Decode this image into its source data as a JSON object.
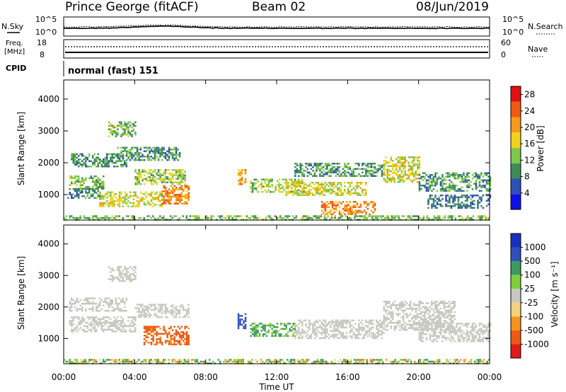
{
  "header": {
    "station": "Prince George (fitACF)",
    "beam": "Beam 02",
    "date": "08/Jun/2019"
  },
  "strip": {
    "nsky_label": "N.Sky",
    "nsky_top": "10^5",
    "nsky_bottom": "10^0",
    "nsearch_label": "N.Search",
    "nsearch_top": "10^5",
    "nsearch_bottom": "10^0",
    "freq_label_1": "Freq.",
    "freq_label_2": "[MHz]",
    "freq_top": "18",
    "freq_bottom": "8",
    "nave_label": "Nave",
    "nave_top": "60",
    "nave_bottom": "0",
    "cpid_label": "CPID",
    "cpid_text": "normal (fast) 151"
  },
  "colors": {
    "power_scale": [
      "#1010e6",
      "#2f4fbb",
      "#3e8c5a",
      "#7fc94a",
      "#f2d21c",
      "#f59a1a",
      "#ef5a12",
      "#e01010"
    ],
    "velocity_scale": [
      "#e21a1a",
      "#ef5a12",
      "#f5931a",
      "#f3d27a",
      "#c8c8c0",
      "#7fcf3a",
      "#3c9a60",
      "#2f4fbb",
      "#1a2fbf"
    ],
    "ground_scatter": "#c8c8c0"
  },
  "chart_data": [
    {
      "type": "heatmap",
      "panel": "power",
      "ylabel": "Slant Range [km]",
      "yticks": [
        "1000",
        "2000",
        "3000",
        "4000"
      ],
      "ylim": [
        200,
        4600
      ],
      "xticks": [
        "00:00",
        "04:00",
        "08:00",
        "12:00",
        "16:00",
        "20:00",
        "00:00"
      ],
      "xlim_hours": [
        0,
        24
      ],
      "colorbar_label": "Power [dB]",
      "colorbar_ticks": [
        "4",
        "8",
        "12",
        "16",
        "20",
        "24",
        "28"
      ],
      "colorbar_range": [
        0,
        30
      ],
      "echo_regions": [
        {
          "t0": 0.3,
          "t1": 2.2,
          "r0": 1200,
          "r1": 1600,
          "value": 12
        },
        {
          "t0": 0.2,
          "t1": 2.0,
          "r0": 900,
          "r1": 1200,
          "value": 8
        },
        {
          "t0": 0.4,
          "t1": 3.5,
          "r0": 1900,
          "r1": 2300,
          "value": 10
        },
        {
          "t0": 2.5,
          "t1": 4.0,
          "r0": 2800,
          "r1": 3300,
          "value": 12
        },
        {
          "t0": 2.0,
          "t1": 5.5,
          "r0": 600,
          "r1": 1100,
          "value": 16
        },
        {
          "t0": 5.5,
          "t1": 7.0,
          "r0": 700,
          "r1": 1300,
          "value": 22
        },
        {
          "t0": 4.0,
          "t1": 6.8,
          "r0": 1300,
          "r1": 1800,
          "value": 14
        },
        {
          "t0": 3.0,
          "t1": 6.5,
          "r0": 2100,
          "r1": 2500,
          "value": 10
        },
        {
          "t0": 9.8,
          "t1": 10.2,
          "r0": 1300,
          "r1": 1800,
          "value": 20
        },
        {
          "t0": 10.5,
          "t1": 13.5,
          "r0": 1100,
          "r1": 1500,
          "value": 14
        },
        {
          "t0": 12.5,
          "t1": 17.0,
          "r0": 1000,
          "r1": 1400,
          "value": 16
        },
        {
          "t0": 14.5,
          "t1": 17.5,
          "r0": 400,
          "r1": 800,
          "value": 22
        },
        {
          "t0": 13.0,
          "t1": 18.0,
          "r0": 1600,
          "r1": 2000,
          "value": 10
        },
        {
          "t0": 18.0,
          "t1": 20.0,
          "r0": 1400,
          "r1": 2200,
          "value": 16
        },
        {
          "t0": 20.0,
          "t1": 24.0,
          "r0": 1100,
          "r1": 1700,
          "value": 10
        },
        {
          "t0": 20.5,
          "t1": 24.0,
          "r0": 600,
          "r1": 1000,
          "value": 8
        },
        {
          "t0": 0.0,
          "t1": 24.0,
          "r0": 200,
          "r1": 350,
          "value": 12
        }
      ]
    },
    {
      "type": "heatmap",
      "panel": "velocity",
      "ylabel": "Slant Range [km]",
      "yticks": [
        "1000",
        "2000",
        "3000",
        "4000"
      ],
      "ylim": [
        200,
        4600
      ],
      "xticks": [
        "00:00",
        "04:00",
        "08:00",
        "12:00",
        "16:00",
        "20:00",
        "00:00"
      ],
      "xlabel": "Time UT",
      "xlim_hours": [
        0,
        24
      ],
      "colorbar_label": "Velocity [m s⁻¹]",
      "colorbar_ticks": [
        "1000",
        "500",
        "100",
        "25",
        "-25",
        "-100",
        "-500",
        "-1000"
      ],
      "echo_regions": [
        {
          "t0": 0.3,
          "t1": 4.0,
          "r0": 1200,
          "r1": 1700,
          "value": 0,
          "ground_scatter": true
        },
        {
          "t0": 0.3,
          "t1": 3.5,
          "r0": 1900,
          "r1": 2300,
          "value": 0,
          "ground_scatter": true
        },
        {
          "t0": 2.5,
          "t1": 4.0,
          "r0": 2800,
          "r1": 3300,
          "value": 0,
          "ground_scatter": true
        },
        {
          "t0": 4.0,
          "t1": 7.0,
          "r0": 1700,
          "r1": 2100,
          "value": 0,
          "ground_scatter": true
        },
        {
          "t0": 4.5,
          "t1": 7.0,
          "r0": 800,
          "r1": 1400,
          "value": -200
        },
        {
          "t0": 9.8,
          "t1": 10.2,
          "r0": 1300,
          "r1": 1800,
          "value": 800
        },
        {
          "t0": 10.5,
          "t1": 13.0,
          "r0": 1100,
          "r1": 1500,
          "value": 150
        },
        {
          "t0": 13.0,
          "t1": 18.0,
          "r0": 1000,
          "r1": 1600,
          "value": 0,
          "ground_scatter": true
        },
        {
          "t0": 18.0,
          "t1": 22.0,
          "r0": 1300,
          "r1": 2200,
          "value": 0,
          "ground_scatter": true
        },
        {
          "t0": 20.0,
          "t1": 24.0,
          "r0": 900,
          "r1": 1500,
          "value": 0,
          "ground_scatter": true
        },
        {
          "t0": 0.0,
          "t1": 24.0,
          "r0": 200,
          "r1": 350,
          "value": 50
        }
      ]
    }
  ]
}
